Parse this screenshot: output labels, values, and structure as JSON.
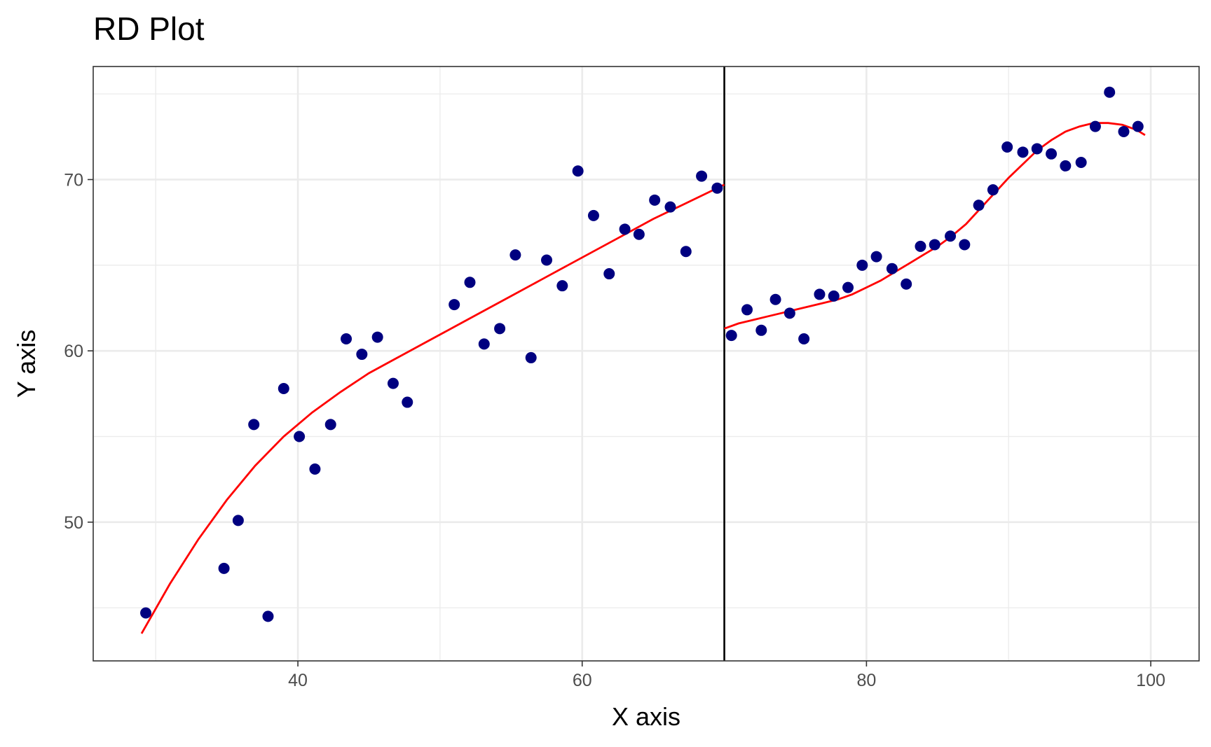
{
  "chart_data": {
    "type": "scatter",
    "title": "RD Plot",
    "xlabel": "X axis",
    "ylabel": "Y axis",
    "xlim": [
      25.6,
      103.4
    ],
    "ylim": [
      41.9,
      76.6
    ],
    "x_ticks": [
      40,
      60,
      80,
      100
    ],
    "y_ticks": [
      50,
      60,
      70
    ],
    "x_minor": [
      30,
      50,
      70,
      90
    ],
    "y_minor": [
      45,
      55,
      65,
      75
    ],
    "grid": true,
    "cutoff": 70,
    "colors": {
      "points": "#000080",
      "fit": "#ff0000",
      "cutoff": "#000000",
      "grid": "#ebebeb"
    },
    "points": [
      [
        29.3,
        44.7
      ],
      [
        34.8,
        47.3
      ],
      [
        35.8,
        50.1
      ],
      [
        36.9,
        55.7
      ],
      [
        37.9,
        44.5
      ],
      [
        39.0,
        57.8
      ],
      [
        40.1,
        55.0
      ],
      [
        41.2,
        53.1
      ],
      [
        42.3,
        55.7
      ],
      [
        43.4,
        60.7
      ],
      [
        44.5,
        59.8
      ],
      [
        45.6,
        60.8
      ],
      [
        46.7,
        58.1
      ],
      [
        47.7,
        57.0
      ],
      [
        51.0,
        62.7
      ],
      [
        52.1,
        64.0
      ],
      [
        53.1,
        60.4
      ],
      [
        54.2,
        61.3
      ],
      [
        55.3,
        65.6
      ],
      [
        56.4,
        59.6
      ],
      [
        57.5,
        65.3
      ],
      [
        58.6,
        63.8
      ],
      [
        59.7,
        70.5
      ],
      [
        60.8,
        67.9
      ],
      [
        61.9,
        64.5
      ],
      [
        63.0,
        67.1
      ],
      [
        64.0,
        66.8
      ],
      [
        65.1,
        68.8
      ],
      [
        66.2,
        68.4
      ],
      [
        67.3,
        65.8
      ],
      [
        68.4,
        70.2
      ],
      [
        69.5,
        69.5
      ],
      [
        70.5,
        60.9
      ],
      [
        71.6,
        62.4
      ],
      [
        72.6,
        61.2
      ],
      [
        73.6,
        63.0
      ],
      [
        74.6,
        62.2
      ],
      [
        75.6,
        60.7
      ],
      [
        76.7,
        63.3
      ],
      [
        77.7,
        63.2
      ],
      [
        78.7,
        63.7
      ],
      [
        79.7,
        65.0
      ],
      [
        80.7,
        65.5
      ],
      [
        81.8,
        64.8
      ],
      [
        82.8,
        63.9
      ],
      [
        83.8,
        66.1
      ],
      [
        84.8,
        66.2
      ],
      [
        85.9,
        66.7
      ],
      [
        86.9,
        66.2
      ],
      [
        87.9,
        68.5
      ],
      [
        88.9,
        69.4
      ],
      [
        89.9,
        71.9
      ],
      [
        91.0,
        71.6
      ],
      [
        92.0,
        71.8
      ],
      [
        93.0,
        71.5
      ],
      [
        94.0,
        70.8
      ],
      [
        95.1,
        71.0
      ],
      [
        96.1,
        73.1
      ],
      [
        97.1,
        75.1
      ],
      [
        98.1,
        72.8
      ],
      [
        99.1,
        73.1
      ]
    ],
    "fit_left": [
      [
        29.0,
        43.5
      ],
      [
        31.0,
        46.4
      ],
      [
        33.0,
        49.0
      ],
      [
        35.0,
        51.3
      ],
      [
        37.0,
        53.3
      ],
      [
        39.0,
        55.0
      ],
      [
        41.0,
        56.4
      ],
      [
        43.0,
        57.6
      ],
      [
        45.0,
        58.7
      ],
      [
        47.0,
        59.6
      ],
      [
        49.0,
        60.5
      ],
      [
        51.0,
        61.4
      ],
      [
        53.0,
        62.3
      ],
      [
        55.0,
        63.2
      ],
      [
        57.0,
        64.1
      ],
      [
        59.0,
        65.0
      ],
      [
        61.0,
        65.9
      ],
      [
        63.0,
        66.8
      ],
      [
        65.0,
        67.7
      ],
      [
        67.0,
        68.5
      ],
      [
        69.0,
        69.3
      ],
      [
        70.0,
        69.7
      ]
    ],
    "fit_right": [
      [
        70.0,
        61.3
      ],
      [
        71.0,
        61.6
      ],
      [
        72.0,
        61.8
      ],
      [
        73.0,
        62.0
      ],
      [
        74.0,
        62.2
      ],
      [
        75.0,
        62.4
      ],
      [
        76.0,
        62.6
      ],
      [
        77.0,
        62.8
      ],
      [
        78.0,
        63.0
      ],
      [
        79.0,
        63.3
      ],
      [
        80.0,
        63.7
      ],
      [
        81.0,
        64.1
      ],
      [
        82.0,
        64.6
      ],
      [
        83.0,
        65.1
      ],
      [
        84.0,
        65.6
      ],
      [
        85.0,
        66.1
      ],
      [
        86.0,
        66.7
      ],
      [
        87.0,
        67.4
      ],
      [
        88.0,
        68.3
      ],
      [
        89.0,
        69.2
      ],
      [
        90.0,
        70.1
      ],
      [
        91.0,
        70.9
      ],
      [
        92.0,
        71.7
      ],
      [
        93.0,
        72.3
      ],
      [
        94.0,
        72.8
      ],
      [
        95.0,
        73.1
      ],
      [
        96.0,
        73.3
      ],
      [
        97.0,
        73.3
      ],
      [
        98.0,
        73.2
      ],
      [
        99.0,
        72.9
      ],
      [
        99.6,
        72.6
      ]
    ]
  }
}
